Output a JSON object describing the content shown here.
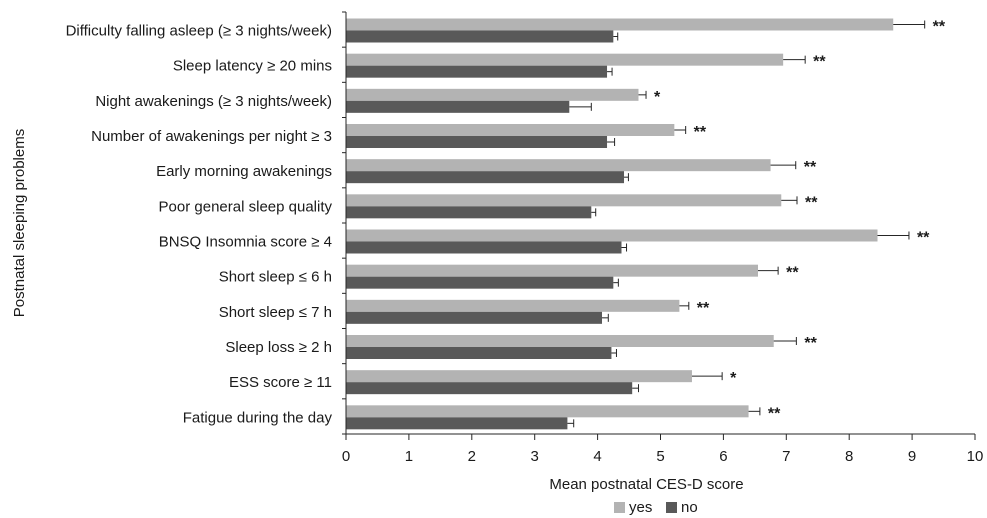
{
  "chart_data": {
    "type": "bar",
    "orientation": "horizontal",
    "title": "",
    "xlabel": "Mean postnatal CES-D score",
    "ylabel": "Postnatal sleeping problems",
    "xlim": [
      0,
      10
    ],
    "xticks": [
      0,
      1,
      2,
      3,
      4,
      5,
      6,
      7,
      8,
      9,
      10
    ],
    "grid": false,
    "legend_position": "bottom",
    "categories": [
      "Difficulty falling asleep (≥ 3 nights/week)",
      "Sleep latency ≥ 20 mins",
      "Night awakenings (≥ 3 nights/week)",
      "Number of awakenings per night ≥ 3",
      "Early morning awakenings",
      "Poor general sleep quality",
      "BNSQ Insomnia score ≥ 4",
      "Short sleep ≤ 6 h",
      "Short sleep ≤ 7 h",
      "Sleep loss ≥ 2 h",
      "ESS score ≥ 11",
      "Fatigue during the day"
    ],
    "series": [
      {
        "name": "yes",
        "color": "#b3b3b3",
        "values": [
          8.7,
          6.95,
          4.65,
          5.22,
          6.75,
          6.92,
          8.45,
          6.55,
          5.3,
          6.8,
          5.5,
          6.4
        ],
        "error": [
          0.5,
          0.35,
          0.12,
          0.18,
          0.4,
          0.25,
          0.5,
          0.32,
          0.15,
          0.36,
          0.48,
          0.18
        ]
      },
      {
        "name": "no",
        "color": "#595959",
        "values": [
          4.25,
          4.15,
          3.55,
          4.15,
          4.42,
          3.9,
          4.38,
          4.25,
          4.07,
          4.22,
          4.55,
          3.52
        ],
        "error": [
          0.07,
          0.08,
          0.35,
          0.12,
          0.07,
          0.07,
          0.08,
          0.08,
          0.1,
          0.08,
          0.1,
          0.1
        ]
      }
    ],
    "significance": [
      "**",
      "**",
      "*",
      "**",
      "**",
      "**",
      "**",
      "**",
      "**",
      "**",
      "*",
      "**"
    ]
  }
}
